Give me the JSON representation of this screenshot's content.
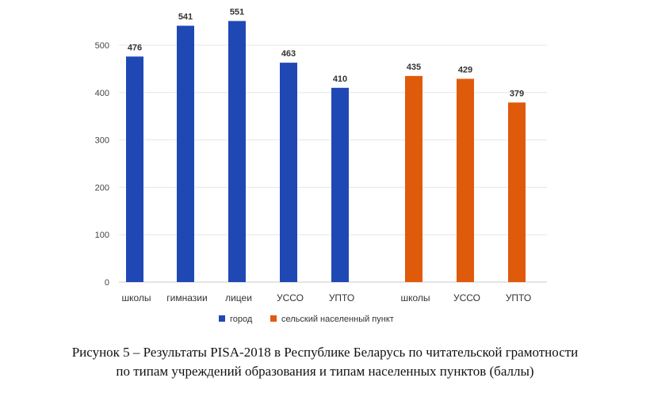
{
  "chart_data": {
    "type": "bar",
    "categories": [
      "школы",
      "гимназии",
      "лицеи",
      "УССО",
      "УПТО",
      "школы",
      "УССО",
      "УПТО"
    ],
    "values": [
      476,
      541,
      551,
      463,
      410,
      435,
      429,
      379
    ],
    "series_assignment": [
      "город",
      "город",
      "город",
      "город",
      "город",
      "сельский населенный пункт",
      "сельский населенный пункт",
      "сельский населенный пункт"
    ],
    "series": [
      {
        "name": "город",
        "color": "#1f48b5"
      },
      {
        "name": "сельский населенный пункт",
        "color": "#e05a0c"
      }
    ],
    "yticks": [
      "0",
      "100",
      "200",
      "300",
      "400",
      "500"
    ],
    "ylim": [
      0,
      600
    ],
    "grid": true,
    "legend_position": "bottom",
    "xlabel": "",
    "ylabel": ""
  },
  "caption": {
    "line1": "Рисунок 5 – Результаты PISA-2018 в Республике Беларусь по читательской грамотности",
    "line2": "по типам учреждений образования и типам населенных пунктов (баллы)"
  }
}
